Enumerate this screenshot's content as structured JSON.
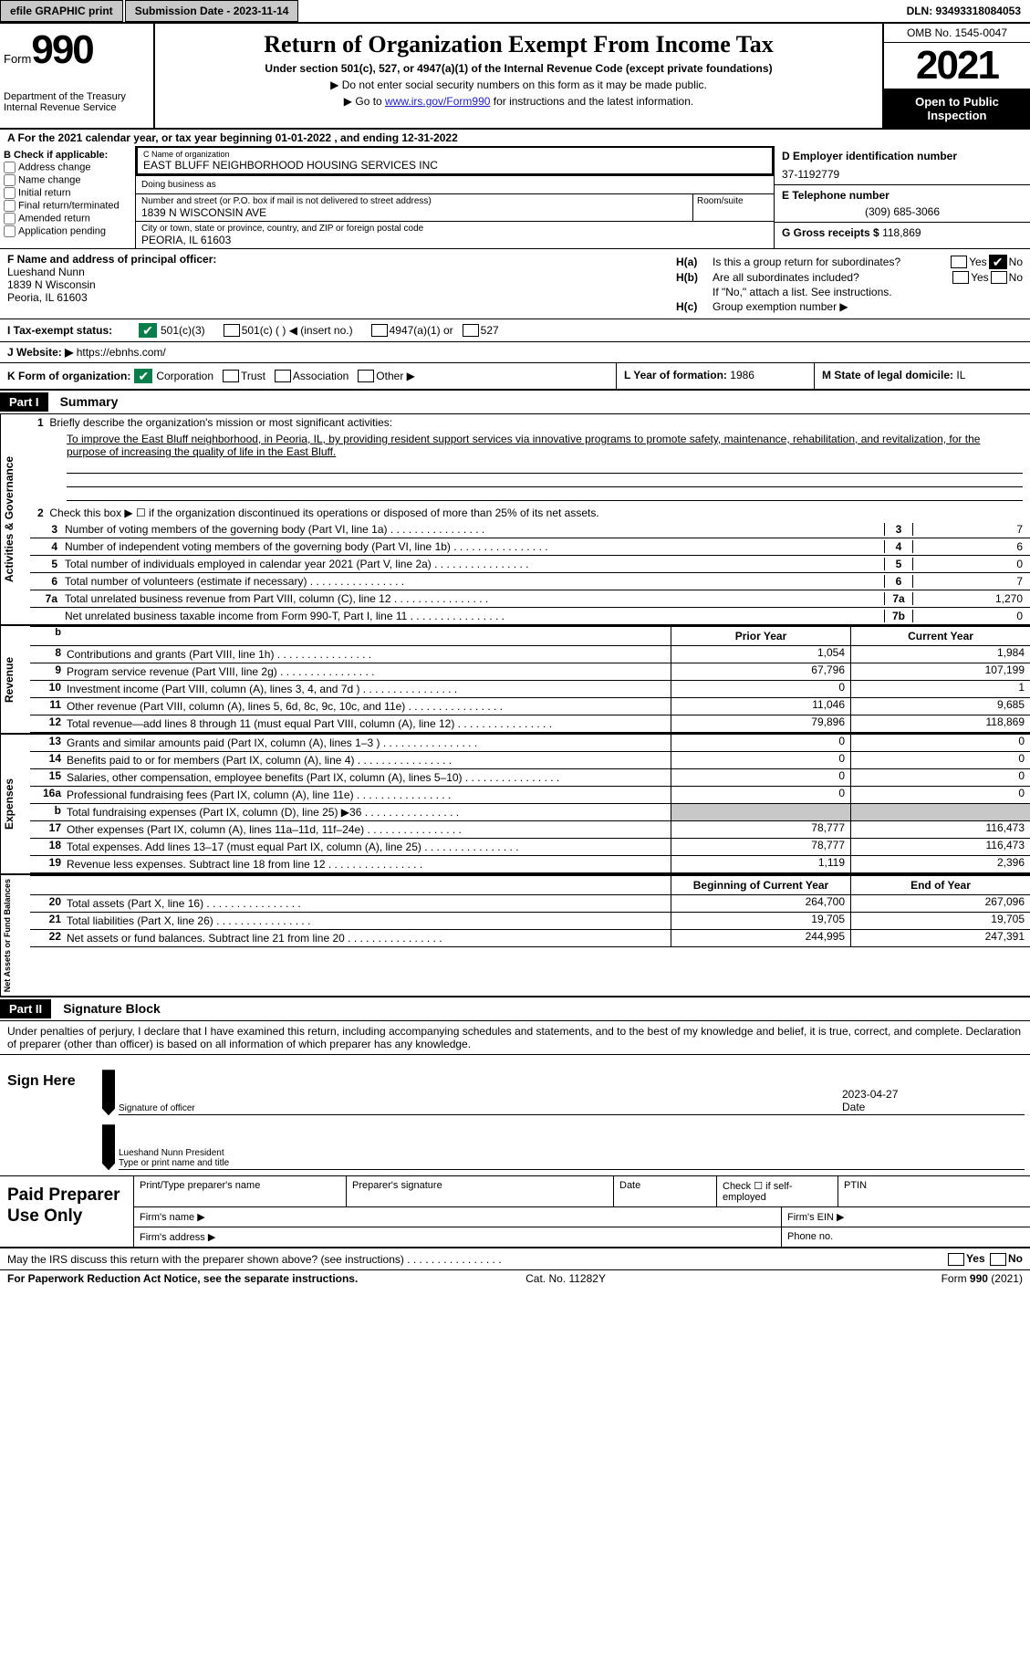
{
  "topbar": {
    "efile": "efile GRAPHIC print",
    "subdate_label": "Submission Date - 2023-11-14",
    "dln": "DLN: 93493318084053"
  },
  "header": {
    "form_word": "Form",
    "form_num": "990",
    "dept1": "Department of the Treasury",
    "dept2": "Internal Revenue Service",
    "title": "Return of Organization Exempt From Income Tax",
    "subtitle": "Under section 501(c), 527, or 4947(a)(1) of the Internal Revenue Code (except private foundations)",
    "note1": "▶ Do not enter social security numbers on this form as it may be made public.",
    "note2_pre": "▶ Go to ",
    "note2_link": "www.irs.gov/Form990",
    "note2_post": " for instructions and the latest information.",
    "omb": "OMB No. 1545-0047",
    "year": "2021",
    "inspect1": "Open to Public",
    "inspect2": "Inspection"
  },
  "lineA": "A For the 2021 calendar year, or tax year beginning 01-01-2022   , and ending 12-31-2022",
  "sectionB": {
    "label": "B Check if applicable:",
    "opts": [
      "Address change",
      "Name change",
      "Initial return",
      "Final return/terminated",
      "Amended return",
      "Application pending"
    ]
  },
  "sectionC": {
    "name_lbl": "C Name of organization",
    "name": "EAST BLUFF NEIGHBORHOOD HOUSING SERVICES INC",
    "dba_lbl": "Doing business as",
    "addr_lbl": "Number and street (or P.O. box if mail is not delivered to street address)",
    "addr": "1839 N WISCONSIN AVE",
    "suite_lbl": "Room/suite",
    "city_lbl": "City or town, state or province, country, and ZIP or foreign postal code",
    "city": "PEORIA, IL  61603"
  },
  "sectionD": {
    "ein_lbl": "D Employer identification number",
    "ein": "37-1192779",
    "phone_lbl": "E Telephone number",
    "phone": "(309) 685-3066",
    "gross_lbl": "G Gross receipts $",
    "gross": "118,869"
  },
  "sectionF": {
    "lbl": "F Name and address of principal officer:",
    "name": "Lueshand Nunn",
    "addr1": "1839 N Wisconsin",
    "addr2": "Peoria, IL  61603"
  },
  "sectionH": {
    "ha": "Is this a group return for subordinates?",
    "hb": "Are all subordinates included?",
    "hb_note": "If \"No,\" attach a list. See instructions.",
    "hc": "Group exemption number ▶"
  },
  "statusI": {
    "lbl": "I     Tax-exempt status:",
    "o1": "501(c)(3)",
    "o2": "501(c) (  ) ◀ (insert no.)",
    "o3": "4947(a)(1) or",
    "o4": "527"
  },
  "websiteJ": {
    "lbl": "J    Website: ▶",
    "val": "https://ebnhs.com/"
  },
  "lineK": {
    "lbl": "K Form of organization:",
    "opts": [
      "Corporation",
      "Trust",
      "Association",
      "Other ▶"
    ]
  },
  "lineL": {
    "lbl": "L Year of formation:",
    "val": "1986"
  },
  "lineM": {
    "lbl": "M State of legal domicile:",
    "val": "IL"
  },
  "part1": {
    "hdr": "Part I",
    "title": "Summary",
    "q1": "Briefly describe the organization's mission or most significant activities:",
    "mission": "To improve the East Bluff neighborhood, in Peoria, IL, by providing resident support services via innovative programs to promote safety, maintenance, rehabilitation, and revitalization, for the purpose of increasing the quality of life in the East Bluff.",
    "q2": "Check this box ▶ ☐ if the organization discontinued its operations or disposed of more than 25% of its net assets.",
    "lines": [
      {
        "n": "3",
        "t": "Number of voting members of the governing body (Part VI, line 1a)",
        "bn": "3",
        "v": "7"
      },
      {
        "n": "4",
        "t": "Number of independent voting members of the governing body (Part VI, line 1b)",
        "bn": "4",
        "v": "6"
      },
      {
        "n": "5",
        "t": "Total number of individuals employed in calendar year 2021 (Part V, line 2a)",
        "bn": "5",
        "v": "0"
      },
      {
        "n": "6",
        "t": "Total number of volunteers (estimate if necessary)",
        "bn": "6",
        "v": "7"
      },
      {
        "n": "7a",
        "t": "Total unrelated business revenue from Part VIII, column (C), line 12",
        "bn": "7a",
        "v": "1,270"
      },
      {
        "n": "",
        "t": "Net unrelated business taxable income from Form 990-T, Part I, line 11",
        "bn": "7b",
        "v": "0"
      }
    ]
  },
  "revenue": {
    "vtab": "Revenue",
    "hdr_b": "b",
    "hdr_py": "Prior Year",
    "hdr_cy": "Current Year",
    "lines": [
      {
        "n": "8",
        "t": "Contributions and grants (Part VIII, line 1h)",
        "py": "1,054",
        "cy": "1,984"
      },
      {
        "n": "9",
        "t": "Program service revenue (Part VIII, line 2g)",
        "py": "67,796",
        "cy": "107,199"
      },
      {
        "n": "10",
        "t": "Investment income (Part VIII, column (A), lines 3, 4, and 7d )",
        "py": "0",
        "cy": "1"
      },
      {
        "n": "11",
        "t": "Other revenue (Part VIII, column (A), lines 5, 6d, 8c, 9c, 10c, and 11e)",
        "py": "11,046",
        "cy": "9,685"
      },
      {
        "n": "12",
        "t": "Total revenue—add lines 8 through 11 (must equal Part VIII, column (A), line 12)",
        "py": "79,896",
        "cy": "118,869"
      }
    ]
  },
  "expenses": {
    "vtab": "Expenses",
    "lines": [
      {
        "n": "13",
        "t": "Grants and similar amounts paid (Part IX, column (A), lines 1–3 )",
        "py": "0",
        "cy": "0"
      },
      {
        "n": "14",
        "t": "Benefits paid to or for members (Part IX, column (A), line 4)",
        "py": "0",
        "cy": "0"
      },
      {
        "n": "15",
        "t": "Salaries, other compensation, employee benefits (Part IX, column (A), lines 5–10)",
        "py": "0",
        "cy": "0"
      },
      {
        "n": "16a",
        "t": "Professional fundraising fees (Part IX, column (A), line 11e)",
        "py": "0",
        "cy": "0"
      },
      {
        "n": "b",
        "t": "Total fundraising expenses (Part IX, column (D), line 25) ▶36",
        "py": "shaded",
        "cy": "shaded"
      },
      {
        "n": "17",
        "t": "Other expenses (Part IX, column (A), lines 11a–11d, 11f–24e)",
        "py": "78,777",
        "cy": "116,473"
      },
      {
        "n": "18",
        "t": "Total expenses. Add lines 13–17 (must equal Part IX, column (A), line 25)",
        "py": "78,777",
        "cy": "116,473"
      },
      {
        "n": "19",
        "t": "Revenue less expenses. Subtract line 18 from line 12",
        "py": "1,119",
        "cy": "2,396"
      }
    ]
  },
  "netassets": {
    "vtab": "Net Assets or Fund Balances",
    "hdr_py": "Beginning of Current Year",
    "hdr_cy": "End of Year",
    "lines": [
      {
        "n": "20",
        "t": "Total assets (Part X, line 16)",
        "py": "264,700",
        "cy": "267,096"
      },
      {
        "n": "21",
        "t": "Total liabilities (Part X, line 26)",
        "py": "19,705",
        "cy": "19,705"
      },
      {
        "n": "22",
        "t": "Net assets or fund balances. Subtract line 21 from line 20",
        "py": "244,995",
        "cy": "247,391"
      }
    ]
  },
  "activities_vtab": "Activities & Governance",
  "part2": {
    "hdr": "Part II",
    "title": "Signature Block",
    "intro": "Under penalties of perjury, I declare that I have examined this return, including accompanying schedules and statements, and to the best of my knowledge and belief, it is true, correct, and complete. Declaration of preparer (other than officer) is based on all information of which preparer has any knowledge."
  },
  "sign": {
    "here": "Sign Here",
    "sig_lbl": "Signature of officer",
    "date": "2023-04-27",
    "date_lbl": "Date",
    "name": "Lueshand Nunn  President",
    "name_lbl": "Type or print name and title"
  },
  "prep": {
    "title": "Paid Preparer Use Only",
    "h1": "Print/Type preparer's name",
    "h2": "Preparer's signature",
    "h3": "Date",
    "h4": "Check ☐ if self-employed",
    "h5": "PTIN",
    "firm_name": "Firm's name   ▶",
    "firm_ein": "Firm's EIN ▶",
    "firm_addr": "Firm's address ▶",
    "phone": "Phone no."
  },
  "footer": {
    "discuss": "May the IRS discuss this return with the preparer shown above? (see instructions)",
    "paperwork": "For Paperwork Reduction Act Notice, see the separate instructions.",
    "cat": "Cat. No. 11282Y",
    "formref": "Form 990 (2021)"
  }
}
